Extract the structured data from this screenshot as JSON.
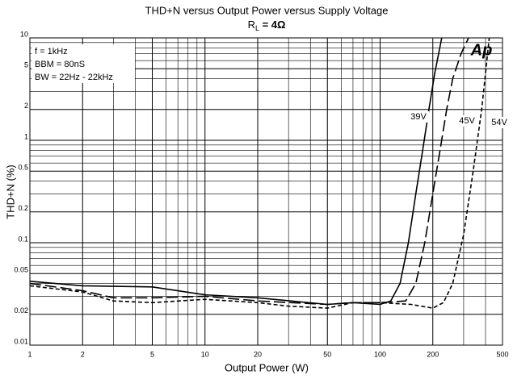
{
  "chart_data": {
    "type": "line",
    "title": "THD+N versus Output Power versus Supply Voltage",
    "subtitle": [
      "R",
      "L",
      " = 4Ω"
    ],
    "xlabel": "Output Power (W)",
    "ylabel": "THD+N (%)",
    "log_x": true,
    "log_y": true,
    "grid": true,
    "xlim": [
      1,
      500
    ],
    "ylim": [
      0.01,
      10
    ],
    "xticks": [
      1,
      2,
      5,
      10,
      20,
      50,
      100,
      200,
      500
    ],
    "yticks": [
      0.01,
      0.02,
      0.05,
      0.1,
      0.2,
      0.5,
      1,
      2,
      5,
      10
    ],
    "xgrid": [
      3,
      4,
      6,
      7,
      8,
      9,
      30,
      40,
      60,
      70,
      80,
      90,
      300,
      400
    ],
    "ygrid": [
      0.03,
      0.04,
      0.06,
      0.07,
      0.08,
      0.09,
      0.3,
      0.4,
      0.6,
      0.7,
      0.8,
      0.9,
      3,
      4,
      6,
      7,
      8,
      9
    ],
    "notes": [
      "f = 1kHz",
      "BBM = 80nS",
      "BW = 22Hz - 22kHz"
    ],
    "logo": "Ap",
    "series": [
      {
        "name": "39V",
        "color": "#000000",
        "dash": "solid",
        "x": [
          1,
          2,
          5,
          10,
          20,
          50,
          70,
          100,
          115,
          130,
          145,
          160,
          175,
          190,
          205,
          225
        ],
        "values": [
          0.042,
          0.038,
          0.037,
          0.031,
          0.029,
          0.025,
          0.026,
          0.025,
          0.027,
          0.04,
          0.1,
          0.3,
          0.8,
          2,
          4.5,
          10
        ]
      },
      {
        "name": "45V",
        "color": "#000000",
        "dash": "longdash",
        "x": [
          1,
          2,
          3,
          5,
          10,
          20,
          50,
          70,
          100,
          140,
          160,
          180,
          200,
          220,
          240,
          260,
          290,
          320
        ],
        "values": [
          0.04,
          0.034,
          0.029,
          0.029,
          0.03,
          0.027,
          0.025,
          0.026,
          0.026,
          0.027,
          0.04,
          0.1,
          0.3,
          0.8,
          2,
          4,
          7,
          10
        ]
      },
      {
        "name": "54V",
        "color": "#000000",
        "dash": "shortdash",
        "x": [
          1,
          2,
          3,
          5,
          10,
          20,
          30,
          50,
          70,
          100,
          150,
          200,
          230,
          260,
          300,
          340,
          380,
          420
        ],
        "values": [
          0.038,
          0.033,
          0.027,
          0.026,
          0.028,
          0.026,
          0.024,
          0.023,
          0.026,
          0.026,
          0.025,
          0.023,
          0.026,
          0.04,
          0.12,
          0.5,
          2,
          10
        ]
      }
    ]
  }
}
